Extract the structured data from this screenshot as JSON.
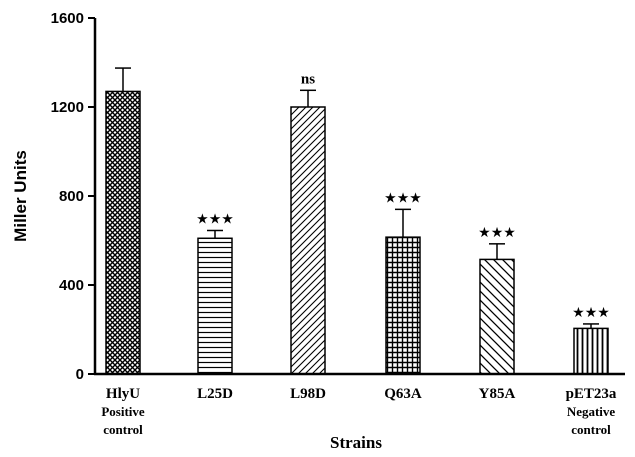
{
  "chart_data": {
    "type": "bar",
    "categories": [
      "HlyU",
      "L25D",
      "L98D",
      "Q63A",
      "Y85A",
      "pET23a"
    ],
    "category_sublabels": [
      "Positive\ncontrol",
      "",
      "",
      "",
      "",
      "Negative\ncontrol"
    ],
    "values": [
      1270,
      610,
      1200,
      615,
      515,
      205
    ],
    "errors": [
      105,
      35,
      75,
      125,
      70,
      20
    ],
    "annotations": [
      "",
      "★★★",
      "ns",
      "★★★",
      "★★★",
      "★★★"
    ],
    "patterns": [
      "crosshatch",
      "horizontal",
      "diagonal-forward",
      "grid",
      "diagonal-back",
      "vertical"
    ],
    "xlabel": "Strains",
    "ylabel": "Miller Units",
    "ylim": [
      0,
      1600
    ],
    "yticks": [
      0,
      400,
      800,
      1200,
      1600
    ],
    "grid": false
  }
}
